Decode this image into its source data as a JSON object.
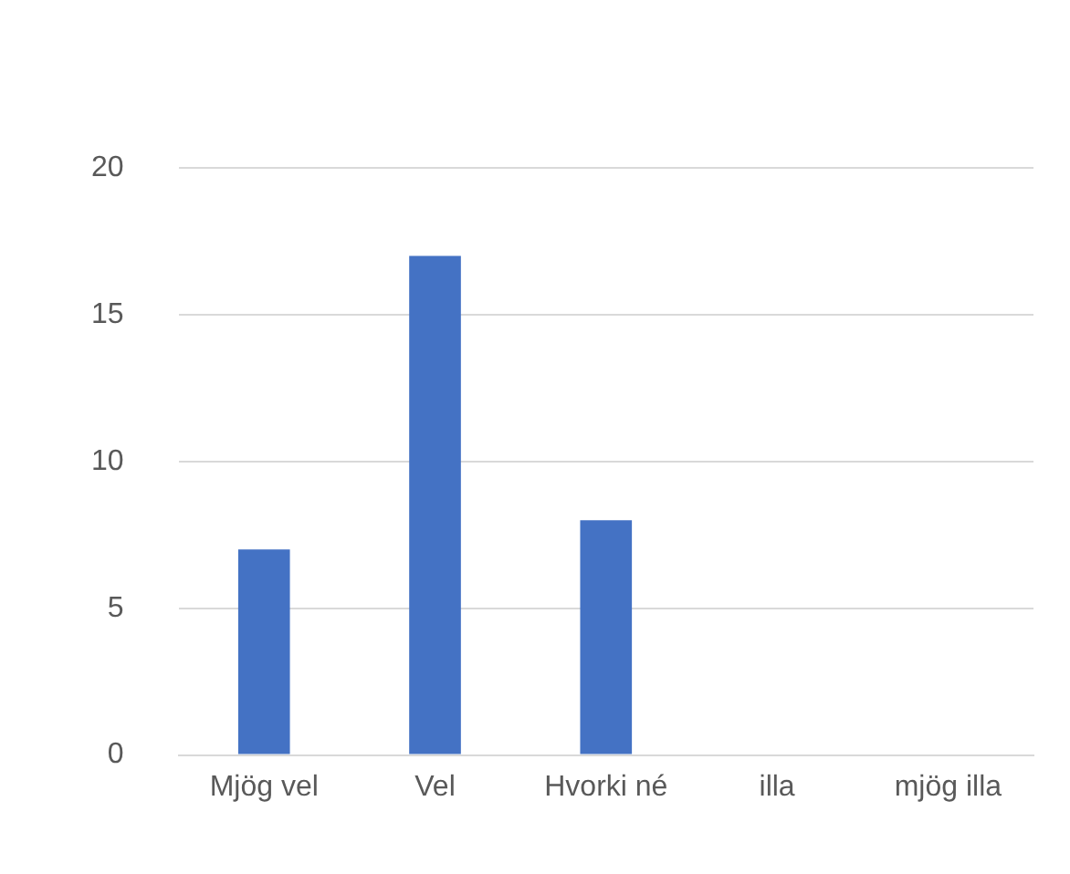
{
  "chart_data": {
    "type": "bar",
    "categories": [
      "Mjög vel",
      "Vel",
      "Hvorki né",
      "illa",
      "mjög illa"
    ],
    "values": [
      7,
      17,
      8,
      0,
      0
    ],
    "color": "#4472c4",
    "ylim": [
      0,
      20
    ],
    "yticks": [
      0,
      5,
      10,
      15,
      20
    ],
    "grid": "y",
    "legend": false
  }
}
